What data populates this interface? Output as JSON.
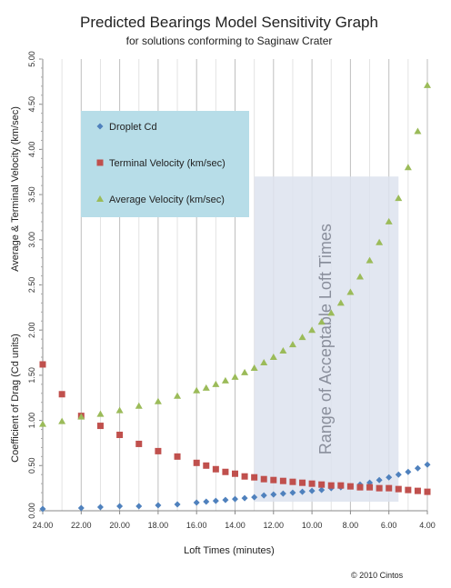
{
  "chart_data": {
    "type": "scatter",
    "title": "Predicted Bearings Model Sensitivity Graph",
    "subtitle": "for solutions conforming to Saginaw Crater",
    "xlabel": "Loft Times (minutes)",
    "ylabel_top": "Average & Terminal Velocity (km/sec)",
    "ylabel_bottom": "Coefficient of Drag (Cd units)",
    "xlim": [
      24,
      4
    ],
    "ylim": [
      0,
      5
    ],
    "x_ticks": [
      "24.00",
      "22.00",
      "20.00",
      "18.00",
      "16.00",
      "14.00",
      "12.00",
      "10.00",
      "8.00",
      "6.00",
      "4.00"
    ],
    "y_ticks": [
      "0.00",
      "0.50",
      "1.00",
      "1.50",
      "2.00",
      "2.50",
      "3.00",
      "3.50",
      "4.00",
      "4.50",
      "5.00"
    ],
    "grid": "vertical",
    "legend_position": "top-left",
    "highlight_band": {
      "label": "Range of Acceptable Loft Times",
      "x_from": 13,
      "x_to": 5.5,
      "y_from": 0.1,
      "y_to": 3.7
    },
    "series": [
      {
        "name": "Droplet Cd",
        "marker": "diamond",
        "color": "#4f81bd",
        "points": [
          [
            24,
            0.02
          ],
          [
            22,
            0.03
          ],
          [
            21,
            0.04
          ],
          [
            20,
            0.05
          ],
          [
            19,
            0.05
          ],
          [
            18,
            0.06
          ],
          [
            17,
            0.07
          ],
          [
            16,
            0.09
          ],
          [
            15.5,
            0.1
          ],
          [
            15,
            0.11
          ],
          [
            14.5,
            0.12
          ],
          [
            14,
            0.13
          ],
          [
            13.5,
            0.14
          ],
          [
            13,
            0.15
          ],
          [
            12.5,
            0.17
          ],
          [
            12,
            0.18
          ],
          [
            11.5,
            0.19
          ],
          [
            11,
            0.2
          ],
          [
            10.5,
            0.21
          ],
          [
            10,
            0.22
          ],
          [
            9.5,
            0.23
          ],
          [
            9,
            0.25
          ],
          [
            8.5,
            0.26
          ],
          [
            8,
            0.27
          ],
          [
            7.5,
            0.29
          ],
          [
            7,
            0.31
          ],
          [
            6.5,
            0.34
          ],
          [
            6,
            0.37
          ],
          [
            5.5,
            0.4
          ],
          [
            5,
            0.43
          ],
          [
            4.5,
            0.47
          ],
          [
            4,
            0.51
          ]
        ]
      },
      {
        "name": "Terminal Velocity (km/sec)",
        "marker": "square",
        "color": "#c0504d",
        "points": [
          [
            24,
            1.62
          ],
          [
            23,
            1.29
          ],
          [
            22,
            1.05
          ],
          [
            21,
            0.94
          ],
          [
            20,
            0.84
          ],
          [
            19,
            0.74
          ],
          [
            18,
            0.66
          ],
          [
            17,
            0.6
          ],
          [
            16,
            0.53
          ],
          [
            15.5,
            0.5
          ],
          [
            15,
            0.46
          ],
          [
            14.5,
            0.43
          ],
          [
            14,
            0.41
          ],
          [
            13.5,
            0.38
          ],
          [
            13,
            0.37
          ],
          [
            12.5,
            0.35
          ],
          [
            12,
            0.34
          ],
          [
            11.5,
            0.33
          ],
          [
            11,
            0.32
          ],
          [
            10.5,
            0.31
          ],
          [
            10,
            0.3
          ],
          [
            9.5,
            0.29
          ],
          [
            9,
            0.28
          ],
          [
            8.5,
            0.28
          ],
          [
            8,
            0.27
          ],
          [
            7.5,
            0.26
          ],
          [
            7,
            0.26
          ],
          [
            6.5,
            0.25
          ],
          [
            6,
            0.25
          ],
          [
            5.5,
            0.24
          ],
          [
            5,
            0.23
          ],
          [
            4.5,
            0.22
          ],
          [
            4,
            0.21
          ]
        ]
      },
      {
        "name": "Average Velocity (km/sec)",
        "marker": "triangle",
        "color": "#9bbb59",
        "points": [
          [
            24,
            0.96
          ],
          [
            23,
            0.99
          ],
          [
            22,
            1.04
          ],
          [
            21,
            1.07
          ],
          [
            20,
            1.11
          ],
          [
            19,
            1.16
          ],
          [
            18,
            1.21
          ],
          [
            17,
            1.27
          ],
          [
            16,
            1.33
          ],
          [
            15.5,
            1.36
          ],
          [
            15,
            1.4
          ],
          [
            14.5,
            1.44
          ],
          [
            14,
            1.48
          ],
          [
            13.5,
            1.53
          ],
          [
            13,
            1.58
          ],
          [
            12.5,
            1.64
          ],
          [
            12,
            1.7
          ],
          [
            11.5,
            1.77
          ],
          [
            11,
            1.84
          ],
          [
            10.5,
            1.92
          ],
          [
            10,
            2.0
          ],
          [
            9.5,
            2.09
          ],
          [
            9,
            2.19
          ],
          [
            8.5,
            2.3
          ],
          [
            8,
            2.42
          ],
          [
            7.5,
            2.59
          ],
          [
            7,
            2.77
          ],
          [
            6.5,
            2.97
          ],
          [
            6,
            3.2
          ],
          [
            5.5,
            3.46
          ],
          [
            5,
            3.8
          ],
          [
            4.5,
            4.2
          ],
          [
            4,
            4.71
          ]
        ]
      }
    ]
  },
  "footer": {
    "copyright": "© 2010 Cintos"
  }
}
